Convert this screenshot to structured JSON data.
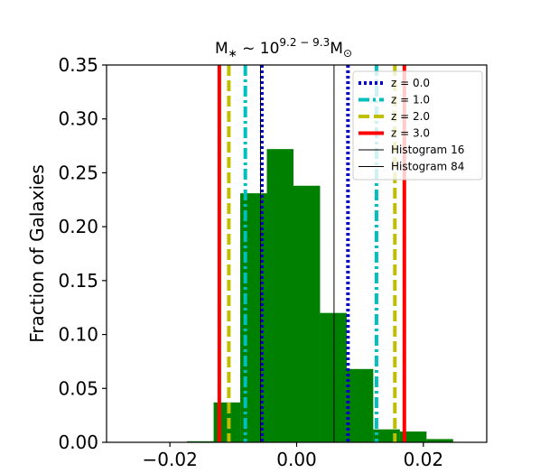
{
  "chart_data": {
    "type": "bar",
    "title_prefix": "M",
    "title_sub": "∗",
    "title_mid": " ~ 10",
    "title_sup": "9.2 − 9.3",
    "title_suffix": "M",
    "title_suffix_sub": "⊙",
    "xlabel": "",
    "ylabel": "Fraction of Galaxies",
    "xlim": [
      -0.03,
      0.03
    ],
    "ylim": [
      0,
      0.35
    ],
    "xticks": [
      -0.02,
      0.0,
      0.02
    ],
    "xtick_labels": [
      "−0.02",
      "0.00",
      "0.02"
    ],
    "yticks": [
      0.0,
      0.05,
      0.1,
      0.15,
      0.2,
      0.25,
      0.3,
      0.35
    ],
    "ytick_labels": [
      "0.00",
      "0.05",
      "0.10",
      "0.15",
      "0.20",
      "0.25",
      "0.30",
      "0.35"
    ],
    "histogram": {
      "color": "#008000",
      "bin_edges": [
        -0.0173,
        -0.0131,
        -0.0089,
        -0.0047,
        -0.0005,
        0.0037,
        0.0079,
        0.0121,
        0.0163,
        0.0205,
        0.0247
      ],
      "values": [
        0.001,
        0.037,
        0.231,
        0.272,
        0.238,
        0.12,
        0.068,
        0.012,
        0.01,
        0.003
      ]
    },
    "vlines": [
      {
        "label": "z = 0.0",
        "color": "#0000cc",
        "style": "dotted",
        "width": 4,
        "x": [
          -0.0055,
          0.0081
        ]
      },
      {
        "label": "z = 1.0",
        "color": "#00bfbf",
        "style": "dashdot",
        "width": 4,
        "x": [
          -0.0081,
          0.0126
        ]
      },
      {
        "label": "z = 2.0",
        "color": "#bfbf00",
        "style": "dashed",
        "width": 4,
        "x": [
          -0.0107,
          0.0155
        ]
      },
      {
        "label": "z = 3.0",
        "color": "#ff0000",
        "style": "solid",
        "width": 4,
        "x": [
          -0.0122,
          0.017
        ]
      },
      {
        "label": "Histogram 16",
        "color": "#000000",
        "style": "solid",
        "width": 1,
        "x": [
          -0.0057
        ]
      },
      {
        "label": "Histogram 84",
        "color": "#000000",
        "style": "solid",
        "width": 1,
        "x": [
          0.0059
        ]
      }
    ],
    "legend_position": "top-right",
    "grid": false
  }
}
